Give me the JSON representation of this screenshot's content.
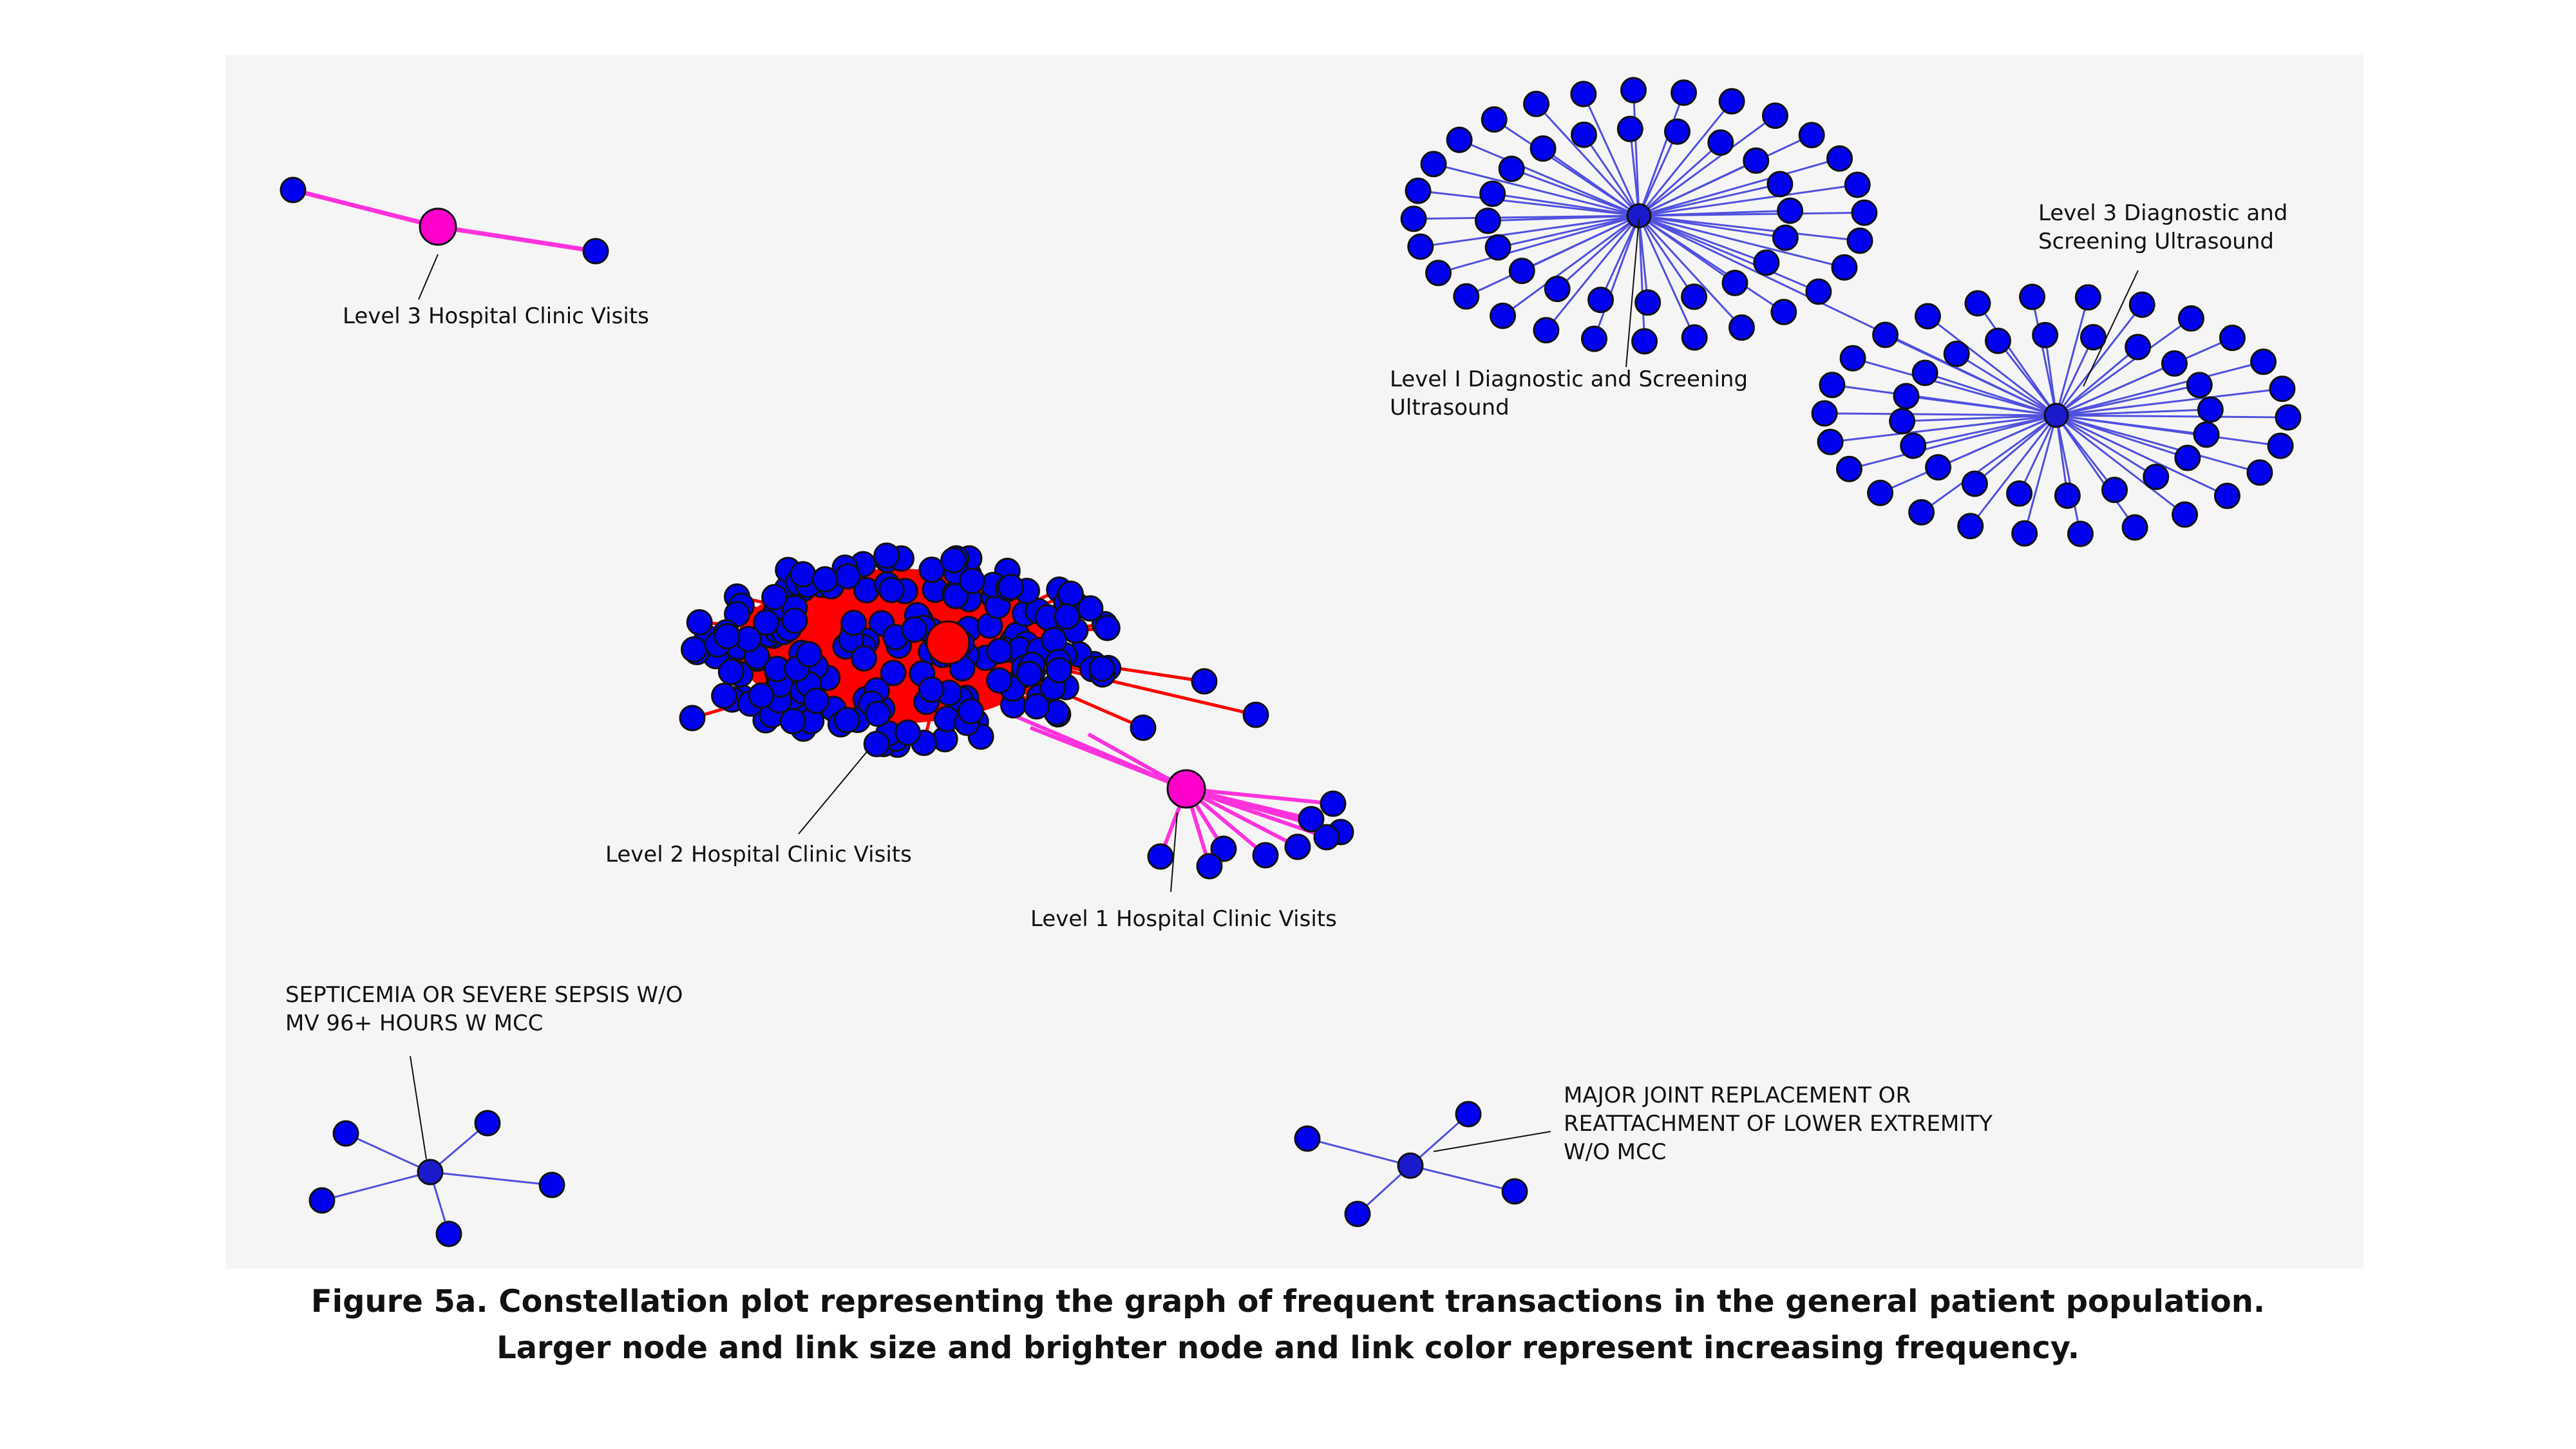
{
  "figure": {
    "caption_line1": "Figure 5a. Constellation plot representing the graph of frequent transactions in the general patient population.",
    "caption_line2": "Larger node and link size and brighter node and link color represent increasing frequency."
  },
  "colors": {
    "background": "#f5f5f5",
    "leaf_node": "#0000ee",
    "hub_low": "#1a1acc",
    "hub_mid": "#ff00cc",
    "hub_high": "#ff0000",
    "link_low": "#5050e0",
    "link_mid": "#ff33dd",
    "link_high": "#ff0000"
  },
  "labels": {
    "level3_hospital": "Level 3 Hospital Clinic Visits",
    "level1_ultrasound_line1": "Level I Diagnostic and Screening",
    "level1_ultrasound_line2": "Ultrasound",
    "level3_ultrasound_line1": "Level 3 Diagnostic and",
    "level3_ultrasound_line2": "Screening Ultrasound",
    "level2_hospital": "Level 2 Hospital Clinic Visits",
    "level1_hospital": "Level 1 Hospital Clinic Visits",
    "septicemia_line1": "SEPTICEMIA OR SEVERE SEPSIS W/O",
    "septicemia_line2": "MV 96+ HOURS W MCC",
    "joint_line1": "MAJOR JOINT REPLACEMENT OR",
    "joint_line2": "REATTACHMENT OF LOWER EXTREMITY",
    "joint_line3": "W/O MCC"
  }
}
